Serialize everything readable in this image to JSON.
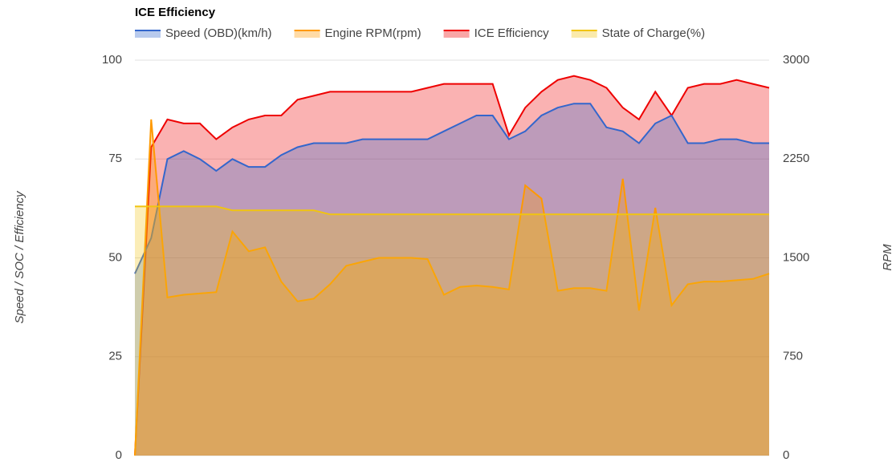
{
  "chart_data": {
    "type": "area",
    "title": "ICE Efficiency",
    "y_label": "Speed / SOC / Efficiency",
    "y2_label": "RPM",
    "ylim": [
      0,
      100
    ],
    "yticks": [
      0,
      25,
      50,
      75,
      100
    ],
    "y2lim": [
      0,
      3000
    ],
    "y2ticks": [
      0,
      750,
      1500,
      2250,
      3000
    ],
    "grid": true,
    "legend": "top",
    "series": [
      {
        "name": "Speed (OBD)(km/h)",
        "color": "#3366cc",
        "values": [
          46,
          55,
          75,
          77,
          75,
          72,
          75,
          73,
          73,
          76,
          78,
          79,
          79,
          79,
          80,
          80,
          80,
          80,
          80,
          82,
          84,
          86,
          86,
          80,
          82,
          86,
          88,
          89,
          89,
          83,
          82,
          79,
          84,
          86,
          79,
          79,
          80,
          80,
          79,
          79
        ]
      },
      {
        "name": "Engine RPM(rpm)",
        "color": "#ff9900",
        "axis": "y2",
        "values": [
          0,
          2550,
          1200,
          1220,
          1230,
          1240,
          1700,
          1550,
          1580,
          1320,
          1170,
          1190,
          1300,
          1440,
          1470,
          1500,
          1500,
          1500,
          1490,
          1220,
          1280,
          1290,
          1280,
          1260,
          2050,
          1950,
          1250,
          1270,
          1270,
          1250,
          2100,
          1100,
          1880,
          1140,
          1300,
          1320,
          1320,
          1330,
          1340,
          1380
        ]
      },
      {
        "name": "ICE Efficiency",
        "color": "#ee0000",
        "values": [
          0,
          78,
          85,
          84,
          84,
          80,
          83,
          85,
          86,
          86,
          90,
          91,
          92,
          92,
          92,
          92,
          92,
          92,
          93,
          94,
          94,
          94,
          94,
          81,
          88,
          92,
          95,
          96,
          95,
          93,
          88,
          85,
          92,
          86,
          93,
          94,
          94,
          95,
          94,
          93
        ]
      },
      {
        "name": "State of Charge(%)",
        "color": "#f1c40f",
        "values": [
          63,
          63,
          63,
          63,
          63,
          63,
          62,
          62,
          62,
          62,
          62,
          62,
          61,
          61,
          61,
          61,
          61,
          61,
          61,
          61,
          61,
          61,
          61,
          61,
          61,
          61,
          61,
          61,
          61,
          61,
          61,
          61,
          61,
          61,
          61,
          61,
          61,
          61,
          61,
          61
        ]
      }
    ]
  }
}
